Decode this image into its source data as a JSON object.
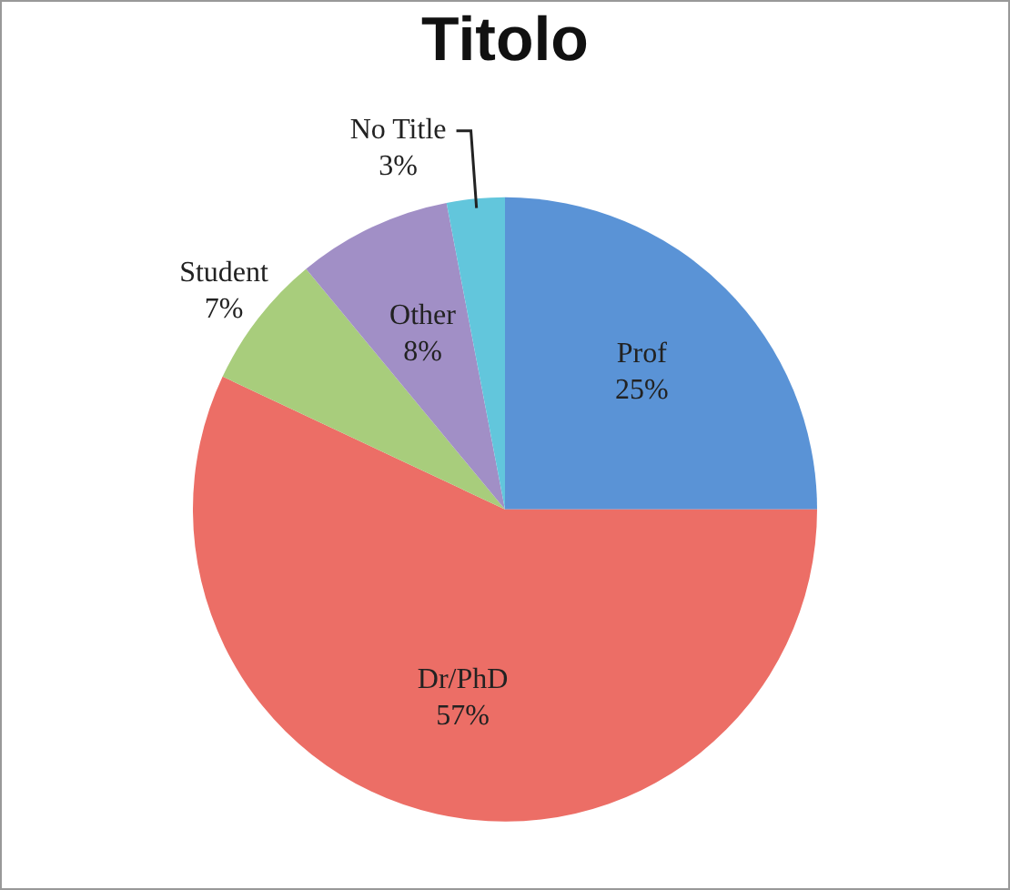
{
  "chart_data": {
    "type": "pie",
    "title": "Titolo",
    "categories": [
      "Prof",
      "Dr/PhD",
      "Student",
      "Other",
      "No Title"
    ],
    "values": [
      25,
      57,
      7,
      8,
      3
    ],
    "value_labels": [
      "25%",
      "57%",
      "7%",
      "8%",
      "3%"
    ],
    "colors": [
      "#5a93d6",
      "#ec6e66",
      "#a8cd7c",
      "#a18fc6",
      "#62c6dc"
    ],
    "legend": false
  }
}
